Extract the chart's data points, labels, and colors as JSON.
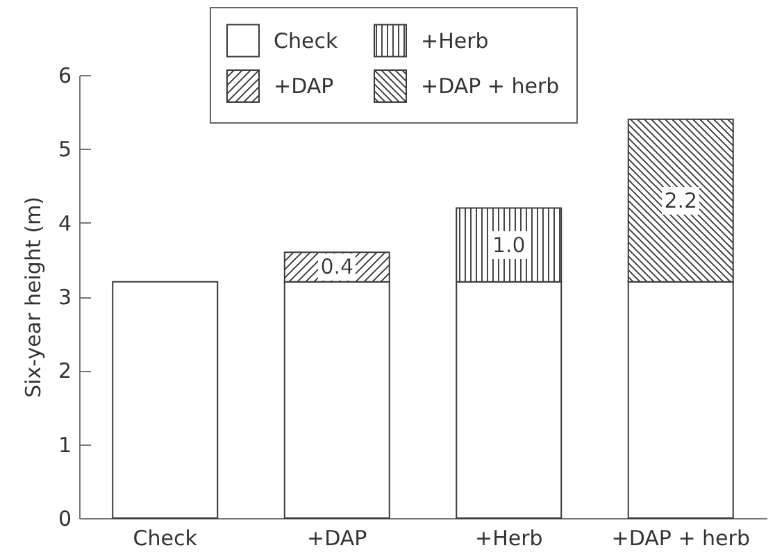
{
  "chart_data": {
    "type": "bar",
    "ylabel": "Six-year height (m)",
    "categories": [
      "Check",
      "+DAP",
      "+Herb",
      "+DAP + herb"
    ],
    "series": [
      {
        "name": "Check",
        "color": "#ffffff",
        "values": [
          3.2,
          3.2,
          3.2,
          3.2
        ]
      },
      {
        "name": "+DAP",
        "color": "#333333",
        "values": [
          null,
          0.4,
          null,
          null
        ],
        "value_labels": [
          null,
          "0.4",
          null,
          null
        ]
      },
      {
        "name": "+Herb",
        "color": "#333333",
        "values": [
          null,
          null,
          1.0,
          null
        ],
        "value_labels": [
          null,
          null,
          "1.0",
          null
        ]
      },
      {
        "name": "+DAP + herb",
        "color": "#333333",
        "values": [
          null,
          null,
          null,
          2.2
        ],
        "value_labels": [
          null,
          null,
          null,
          "2.2"
        ]
      }
    ],
    "stacked": true,
    "ylim": [
      0,
      6
    ],
    "yticks": [
      0,
      1,
      2,
      3,
      4,
      5,
      6
    ],
    "legend": "top"
  }
}
